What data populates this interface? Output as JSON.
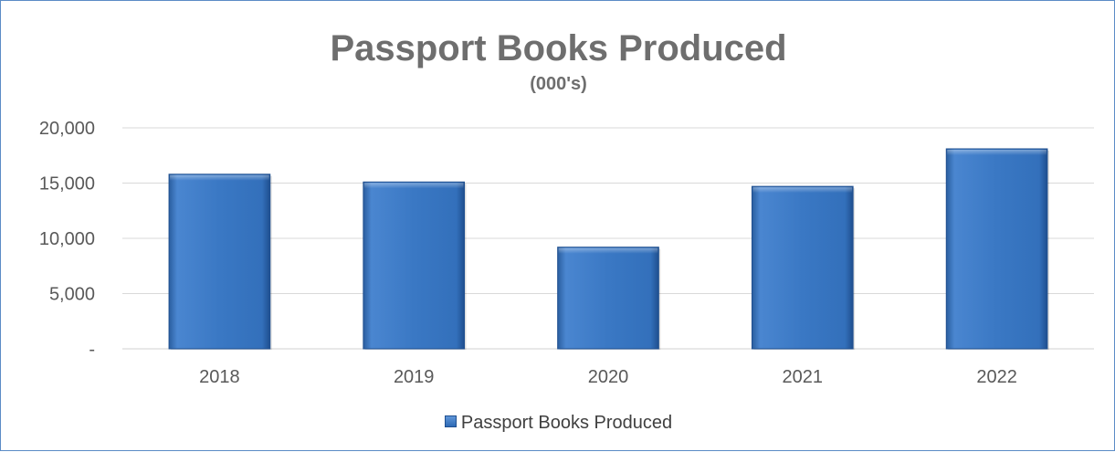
{
  "chart_data": {
    "type": "bar",
    "title": "Passport Books Produced",
    "subtitle": "(000's)",
    "categories": [
      "2018",
      "2019",
      "2020",
      "2021",
      "2022"
    ],
    "series": [
      {
        "name": "Passport Books Produced",
        "values": [
          15800,
          15100,
          9200,
          14700,
          18100
        ]
      }
    ],
    "ylim": [
      0,
      20000
    ],
    "yticks": [
      0,
      5000,
      10000,
      15000,
      20000
    ],
    "ytick_labels": [
      "-",
      "5,000",
      "10,000",
      "15,000",
      "20,000"
    ],
    "grid": true,
    "legend_position": "bottom",
    "bar_color": "#3a78c4"
  }
}
